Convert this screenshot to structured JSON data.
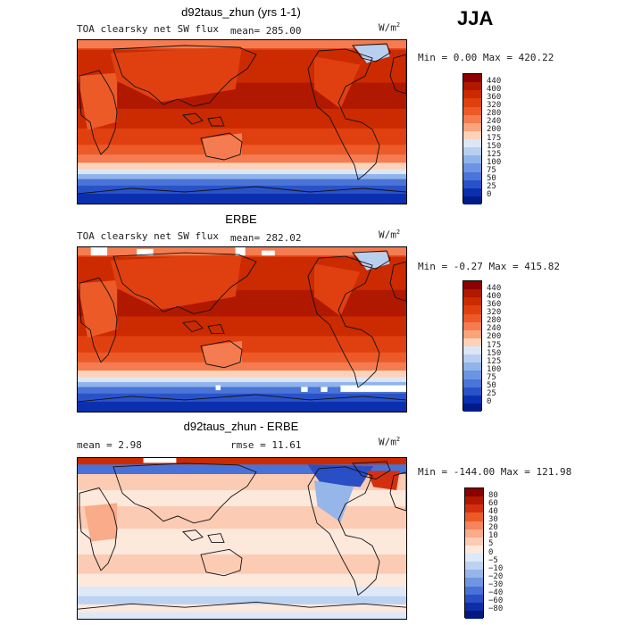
{
  "season": "JJA",
  "panels": [
    {
      "title": "d92taus_zhun (yrs 1-1)",
      "left_label": "TOA clearsky net SW flux",
      "mean_label": "mean= 285.00",
      "units": "W/m",
      "units_exp": "2",
      "minmax": "Min =   0.00 Max = 420.22"
    },
    {
      "title": "ERBE",
      "left_label": "TOA clearsky net SW flux",
      "mean_label": "mean= 282.02",
      "units": "W/m",
      "units_exp": "2",
      "minmax": "Min =  -0.27 Max = 415.82"
    },
    {
      "title": "d92taus_zhun - ERBE",
      "left_label": "mean =    2.98",
      "mean_label": "rmse =  11.61",
      "units": "W/m",
      "units_exp": "2",
      "minmax": "Min = -144.00 Max = 121.98"
    }
  ],
  "chart_data": [
    {
      "type": "heatmap",
      "title": "d92taus_zhun (yrs 1-1)",
      "subtitle": "TOA clearsky net SW flux",
      "mean": 285.0,
      "min": 0.0,
      "max": 420.22,
      "colorbar_levels": [
        "440",
        "400",
        "360",
        "320",
        "280",
        "240",
        "200",
        "175",
        "150",
        "125",
        "100",
        "75",
        "50",
        "25",
        "0"
      ],
      "colorbar_colors": [
        "#8b0000",
        "#b01800",
        "#cc2a00",
        "#e04010",
        "#ec5a28",
        "#f47c50",
        "#f9a47a",
        "#fcd2b8",
        "#dde6f6",
        "#b8cff0",
        "#90b4ea",
        "#6c94e2",
        "#4a74d8",
        "#2a52c8",
        "#0a30b0",
        "#001c88"
      ]
    },
    {
      "type": "heatmap",
      "title": "ERBE",
      "subtitle": "TOA clearsky net SW flux",
      "mean": 282.02,
      "min": -0.27,
      "max": 415.82,
      "colorbar_levels": [
        "440",
        "400",
        "360",
        "320",
        "280",
        "240",
        "200",
        "175",
        "150",
        "125",
        "100",
        "75",
        "50",
        "25",
        "0"
      ],
      "colorbar_colors": [
        "#8b0000",
        "#b01800",
        "#cc2a00",
        "#e04010",
        "#ec5a28",
        "#f47c50",
        "#f9a47a",
        "#fcd2b8",
        "#dde6f6",
        "#b8cff0",
        "#90b4ea",
        "#6c94e2",
        "#4a74d8",
        "#2a52c8",
        "#0a30b0",
        "#001c88"
      ]
    },
    {
      "type": "heatmap",
      "title": "d92taus_zhun - ERBE",
      "mean": 2.98,
      "rmse": 11.61,
      "min": -144.0,
      "max": 121.98,
      "colorbar_levels": [
        "80",
        "60",
        "40",
        "30",
        "20",
        "10",
        "5",
        "0",
        "−5",
        "−10",
        "−20",
        "−30",
        "−40",
        "−60",
        "−80"
      ],
      "colorbar_colors": [
        "#8b0000",
        "#b01800",
        "#d43010",
        "#ec5a28",
        "#f4855c",
        "#f9ab8a",
        "#fccbb4",
        "#fde8dc",
        "#dde8f8",
        "#bcd2f2",
        "#96b6ea",
        "#7096e2",
        "#4a72d6",
        "#2a4ec4",
        "#0e2ea8",
        "#001a80"
      ]
    }
  ]
}
